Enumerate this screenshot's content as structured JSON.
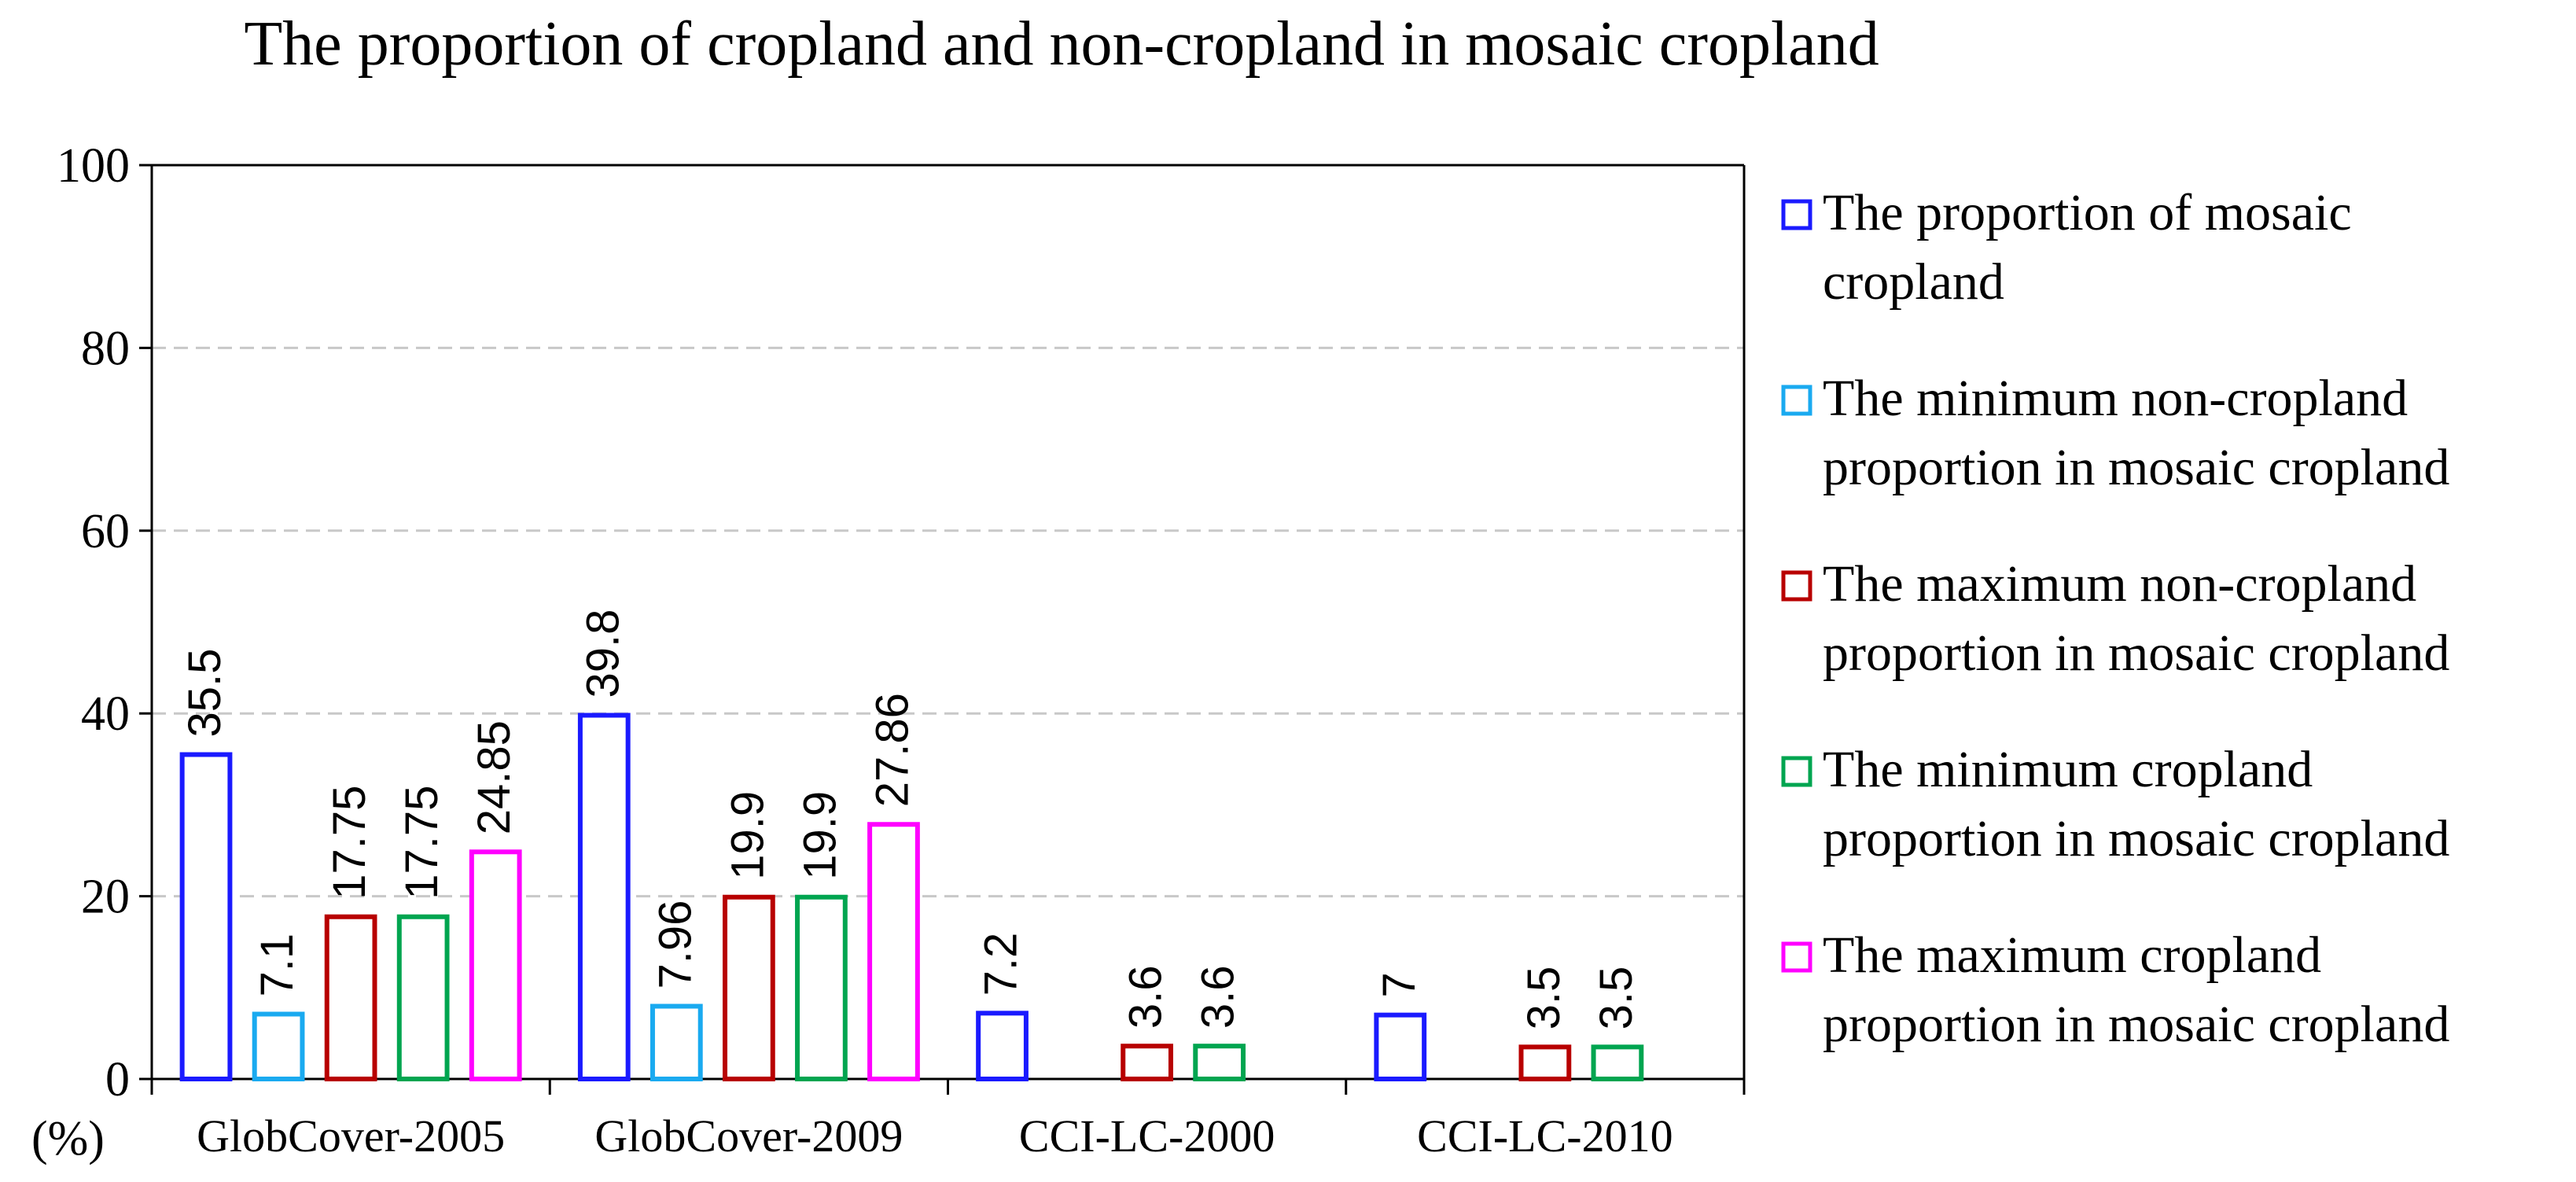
{
  "chart_data": {
    "type": "bar",
    "title": "The proportion of cropland and non-cropland in mosaic cropland",
    "ylabel": "(%)",
    "xlabel": "",
    "ylim": [
      0,
      100
    ],
    "yticks": [
      0,
      20,
      40,
      60,
      80,
      100
    ],
    "grid": "horizontal dashed",
    "legend_position": "right",
    "categories": [
      "GlobCover-2005",
      "GlobCover-2009",
      "CCI-LC-2000",
      "CCI-LC-2010"
    ],
    "series": [
      {
        "name": "The proportion of mosaic cropland",
        "color": "#1a1aff",
        "values": [
          35.5,
          39.8,
          7.2,
          7
        ],
        "labels": [
          "35.5",
          "39.8",
          "7.2",
          "7"
        ]
      },
      {
        "name": "The minimum non-cropland proportion in mosaic cropland",
        "color": "#1aaaf0",
        "values": [
          7.1,
          7.96,
          null,
          null
        ],
        "labels": [
          "7.1",
          "7.96",
          null,
          null
        ]
      },
      {
        "name": "The maximum non-cropland proportion in mosaic cropland",
        "color": "#b80000",
        "values": [
          17.75,
          19.9,
          3.6,
          3.5
        ],
        "labels": [
          "17.75",
          "19.9",
          "3.6",
          "3.5"
        ]
      },
      {
        "name": "The minimum cropland proportion in mosaic cropland",
        "color": "#00a550",
        "values": [
          17.75,
          19.9,
          3.6,
          3.5
        ],
        "labels": [
          "17.75",
          "19.9",
          "3.6",
          "3.5"
        ]
      },
      {
        "name": "The maximum cropland proportion in mosaic cropland",
        "color": "#ff00ff",
        "values": [
          24.85,
          27.86,
          null,
          null
        ],
        "labels": [
          "24.85",
          "27.86",
          null,
          null
        ]
      }
    ],
    "legend_lines": [
      [
        "The proportion of mosaic",
        "cropland"
      ],
      [
        "The minimum non-cropland",
        "proportion in mosaic cropland"
      ],
      [
        "The maximum non-cropland",
        "proportion in mosaic cropland"
      ],
      [
        "The minimum cropland",
        "proportion in mosaic cropland"
      ],
      [
        "The maximum cropland",
        "proportion in mosaic cropland"
      ]
    ]
  }
}
